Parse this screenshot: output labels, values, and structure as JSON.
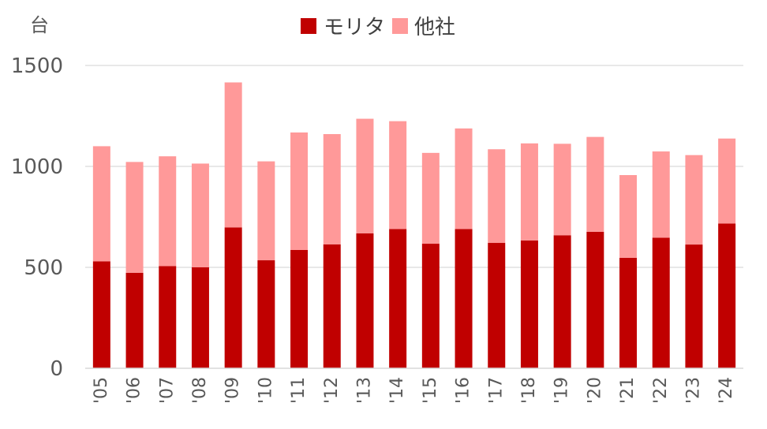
{
  "chart_data": {
    "type": "bar",
    "stacked": true,
    "unit_label": "台",
    "categories": [
      "'05",
      "'06",
      "'07",
      "'08",
      "'09",
      "'10",
      "'11",
      "'12",
      "'13",
      "'14",
      "'15",
      "'16",
      "'17",
      "'18",
      "'19",
      "'20",
      "'21",
      "'22",
      "'23",
      "'24"
    ],
    "series": [
      {
        "name": "モリタ",
        "color": "#C00000",
        "values": [
          530,
          473,
          506,
          500,
          698,
          535,
          586,
          614,
          668,
          690,
          617,
          690,
          621,
          633,
          659,
          676,
          547,
          647,
          613,
          717
        ]
      },
      {
        "name": "他社",
        "color": "#FF9999",
        "values": [
          570,
          549,
          544,
          514,
          718,
          490,
          582,
          546,
          568,
          534,
          450,
          498,
          464,
          481,
          453,
          470,
          410,
          427,
          443,
          421
        ]
      }
    ],
    "ylim": [
      0,
      1500
    ],
    "yticks": [
      "0",
      "500",
      "1000",
      "1500"
    ],
    "grid": true,
    "legend_position": "top-center"
  }
}
